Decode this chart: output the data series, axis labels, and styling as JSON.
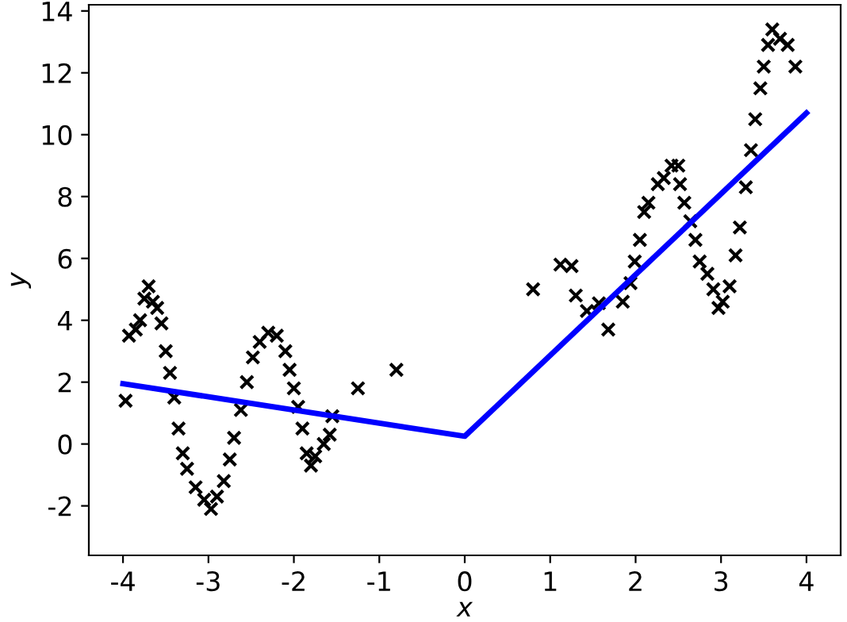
{
  "chart_data": {
    "type": "scatter",
    "xlabel": "x",
    "ylabel": "y",
    "xlim": [
      -4.4,
      4.4
    ],
    "ylim": [
      -3.6,
      14.2
    ],
    "xticks": [
      -4,
      -3,
      -2,
      -1,
      0,
      1,
      2,
      3,
      4
    ],
    "yticks": [
      -2,
      0,
      2,
      4,
      6,
      8,
      10,
      12,
      14
    ],
    "grid": false,
    "series": [
      {
        "marker": "cross",
        "color": "#000000",
        "x": [
          -3.97,
          -3.93,
          -3.85,
          -3.8,
          -3.75,
          -3.7,
          -3.65,
          -3.6,
          -3.55,
          -3.5,
          -3.45,
          -3.4,
          -3.35,
          -3.3,
          -3.25,
          -3.15,
          -3.05,
          -2.97,
          -2.9,
          -2.82,
          -2.75,
          -2.7,
          -2.62,
          -2.55,
          -2.48,
          -2.4,
          -2.3,
          -2.2,
          -2.1,
          -2.05,
          -2.0,
          -1.95,
          -1.9,
          -1.85,
          -1.8,
          -1.75,
          -1.65,
          -1.58,
          -1.55,
          -1.25,
          -0.8,
          0.8,
          1.12,
          1.25,
          1.3,
          1.43,
          1.57,
          1.68,
          1.85,
          1.94,
          1.99,
          2.05,
          2.1,
          2.15,
          2.26,
          2.33,
          2.42,
          2.5,
          2.52,
          2.57,
          2.64,
          2.7,
          2.75,
          2.84,
          2.91,
          2.97,
          3.02,
          3.1,
          3.17,
          3.22,
          3.29,
          3.35,
          3.4,
          3.46,
          3.5,
          3.55,
          3.6,
          3.69,
          3.78,
          3.87
        ],
        "values": [
          1.4,
          3.5,
          3.7,
          4.0,
          4.7,
          5.1,
          4.6,
          4.4,
          3.9,
          3.0,
          2.3,
          1.5,
          0.5,
          -0.3,
          -0.8,
          -1.4,
          -1.8,
          -2.1,
          -1.7,
          -1.2,
          -0.5,
          0.2,
          1.1,
          2.0,
          2.8,
          3.3,
          3.6,
          3.5,
          3.0,
          2.4,
          1.8,
          1.2,
          0.5,
          -0.3,
          -0.7,
          -0.4,
          0.0,
          0.3,
          0.9,
          1.8,
          2.4,
          5.0,
          5.8,
          5.75,
          4.8,
          4.3,
          4.55,
          3.7,
          4.6,
          5.2,
          5.9,
          6.6,
          7.5,
          7.8,
          8.4,
          8.6,
          9.0,
          9.0,
          8.4,
          7.8,
          7.2,
          6.6,
          5.9,
          5.5,
          5.0,
          4.4,
          4.6,
          5.1,
          6.1,
          7.0,
          8.3,
          9.5,
          10.5,
          11.5,
          12.2,
          12.9,
          13.4,
          13.1,
          12.9,
          12.2
        ]
      },
      {
        "type": "line",
        "color": "#0000ff",
        "x": [
          -4,
          0,
          4
        ],
        "values": [
          1.95,
          0.25,
          10.7
        ]
      }
    ]
  }
}
